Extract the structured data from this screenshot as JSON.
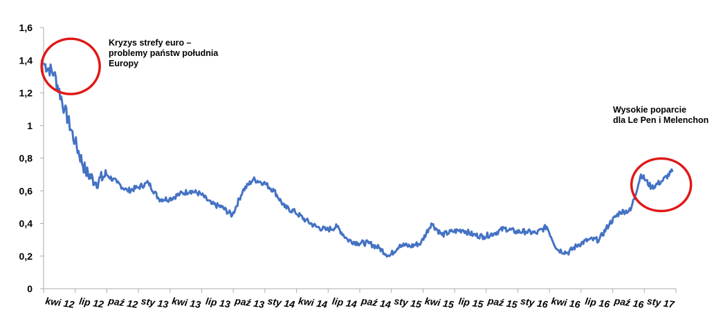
{
  "chart_data": {
    "type": "line",
    "title": "",
    "xlabel": "",
    "ylabel": "",
    "ylim": [
      0,
      1.6
    ],
    "y_ticks": [
      "0",
      "0,2",
      "0,4",
      "0,6",
      "0,8",
      "1",
      "1,2",
      "1,4",
      "1,6"
    ],
    "x_ticks": [
      "kwi 12",
      "lip 12",
      "paź 12",
      "sty 13",
      "kwi 13",
      "lip 13",
      "paź 13",
      "sty 14",
      "kwi 14",
      "lip 14",
      "paź 14",
      "sty 15",
      "kwi 15",
      "lip 15",
      "paź 15",
      "sty 16",
      "kwi 16",
      "lip 16",
      "paź 16",
      "sty 17"
    ],
    "grid": false,
    "legend": "none",
    "color": "#4472C4",
    "annotations": [
      {
        "text": "Kryzys strefy euro –\nproblemy państw południa\nEuropy",
        "marker": "red circle",
        "x_period": "kwi 12 – lip 12"
      },
      {
        "text": "Wysokie poparcie\ndla Le Pen i Melenchon",
        "marker": "red circle",
        "x_period": "sty 17 – kwi 17"
      }
    ],
    "series": [
      {
        "x": [
          "kwi 12",
          "maj 12",
          "cze 12",
          "lip 12",
          "sie 12",
          "wrz 12",
          "paź 12",
          "lis 12",
          "gru 12",
          "sty 13",
          "lut 13",
          "mar 13",
          "kwi 13",
          "maj 13",
          "cze 13",
          "lip 13",
          "sie 13",
          "wrz 13",
          "paź 13",
          "lis 13",
          "gru 13",
          "sty 14",
          "lut 14",
          "mar 14",
          "kwi 14",
          "maj 14",
          "cze 14",
          "lip 14",
          "sie 14",
          "wrz 14",
          "paź 14",
          "lis 14",
          "gru 14",
          "sty 15",
          "lut 15",
          "mar 15",
          "kwi 15",
          "maj 15",
          "cze 15",
          "lip 15",
          "sie 15",
          "wrz 15",
          "paź 15",
          "lis 15",
          "gru 15",
          "sty 16",
          "lut 16",
          "mar 16",
          "kwi 16",
          "maj 16",
          "cze 16",
          "lip 16",
          "sie 16",
          "wrz 16",
          "paź 16",
          "lis 16",
          "gru 16",
          "sty 17",
          "lut 17",
          "mar 17",
          "kwi 17"
        ],
        "values": [
          1.38,
          1.32,
          1.1,
          0.9,
          0.72,
          0.65,
          0.7,
          0.65,
          0.6,
          0.62,
          0.65,
          0.55,
          0.55,
          0.58,
          0.6,
          0.58,
          0.52,
          0.5,
          0.45,
          0.6,
          0.67,
          0.65,
          0.6,
          0.5,
          0.47,
          0.42,
          0.38,
          0.36,
          0.38,
          0.3,
          0.28,
          0.28,
          0.25,
          0.2,
          0.27,
          0.26,
          0.28,
          0.4,
          0.33,
          0.35,
          0.36,
          0.33,
          0.32,
          0.34,
          0.37,
          0.35,
          0.35,
          0.34,
          0.38,
          0.24,
          0.22,
          0.27,
          0.3,
          0.3,
          0.4,
          0.47,
          0.48,
          0.7,
          0.62,
          0.66,
          0.72
        ]
      }
    ]
  }
}
